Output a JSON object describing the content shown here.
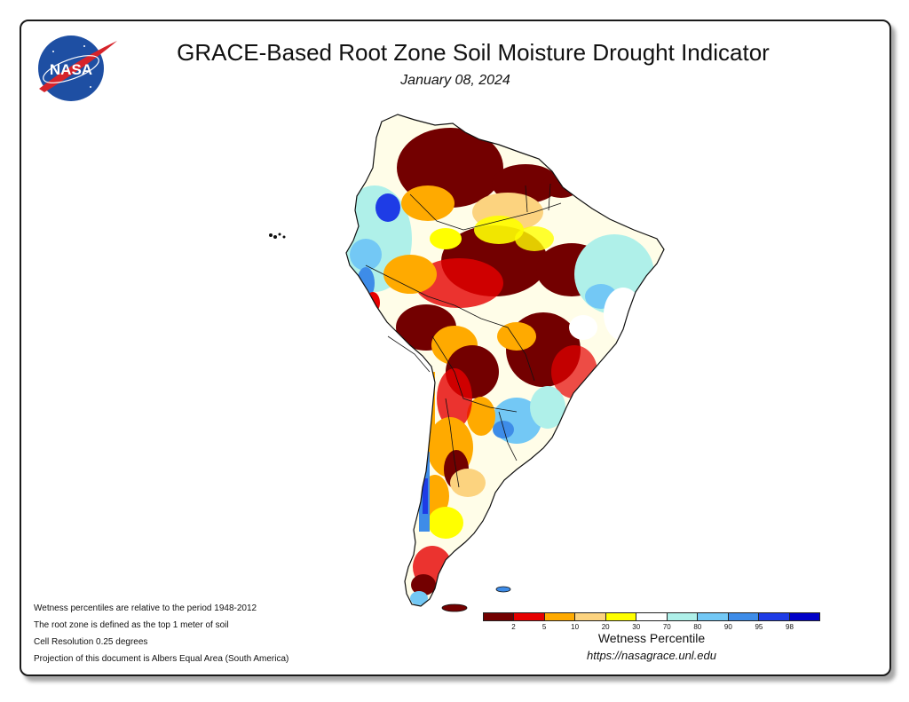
{
  "header": {
    "title": "GRACE-Based Root Zone Soil Moisture Drought Indicator",
    "date": "January 08, 2024",
    "logo_text": "NASA"
  },
  "notes": [
    "Wetness percentiles are relative to the period 1948-2012",
    "The root zone is defined as the top 1 meter of soil",
    "Cell Resolution 0.25 degrees",
    "Projection of this document is Albers Equal Area (South America)"
  ],
  "legend": {
    "title": "Wetness Percentile",
    "colors": [
      "#730000",
      "#e60000",
      "#ffaa00",
      "#fcd37f",
      "#ffff00",
      "#ffffff",
      "#aff0e9",
      "#73c8f5",
      "#3e8ce8",
      "#1e3ce6",
      "#0000c8"
    ],
    "ticks": [
      "2",
      "5",
      "10",
      "20",
      "30",
      "70",
      "80",
      "90",
      "95",
      "98"
    ]
  },
  "footer": {
    "url": "https://nasagrace.unl.edu"
  },
  "colors": {
    "extreme_drought": "#730000",
    "severe_drought": "#e60000",
    "moderate": "#ffaa00",
    "abnormally_dry": "#fcd37f",
    "dry": "#ffff00",
    "normal": "#ffffff",
    "wet_light": "#aff0e9",
    "wet": "#73c8f5",
    "very_wet": "#3e8ce8",
    "extreme_wet": "#0000c8"
  }
}
